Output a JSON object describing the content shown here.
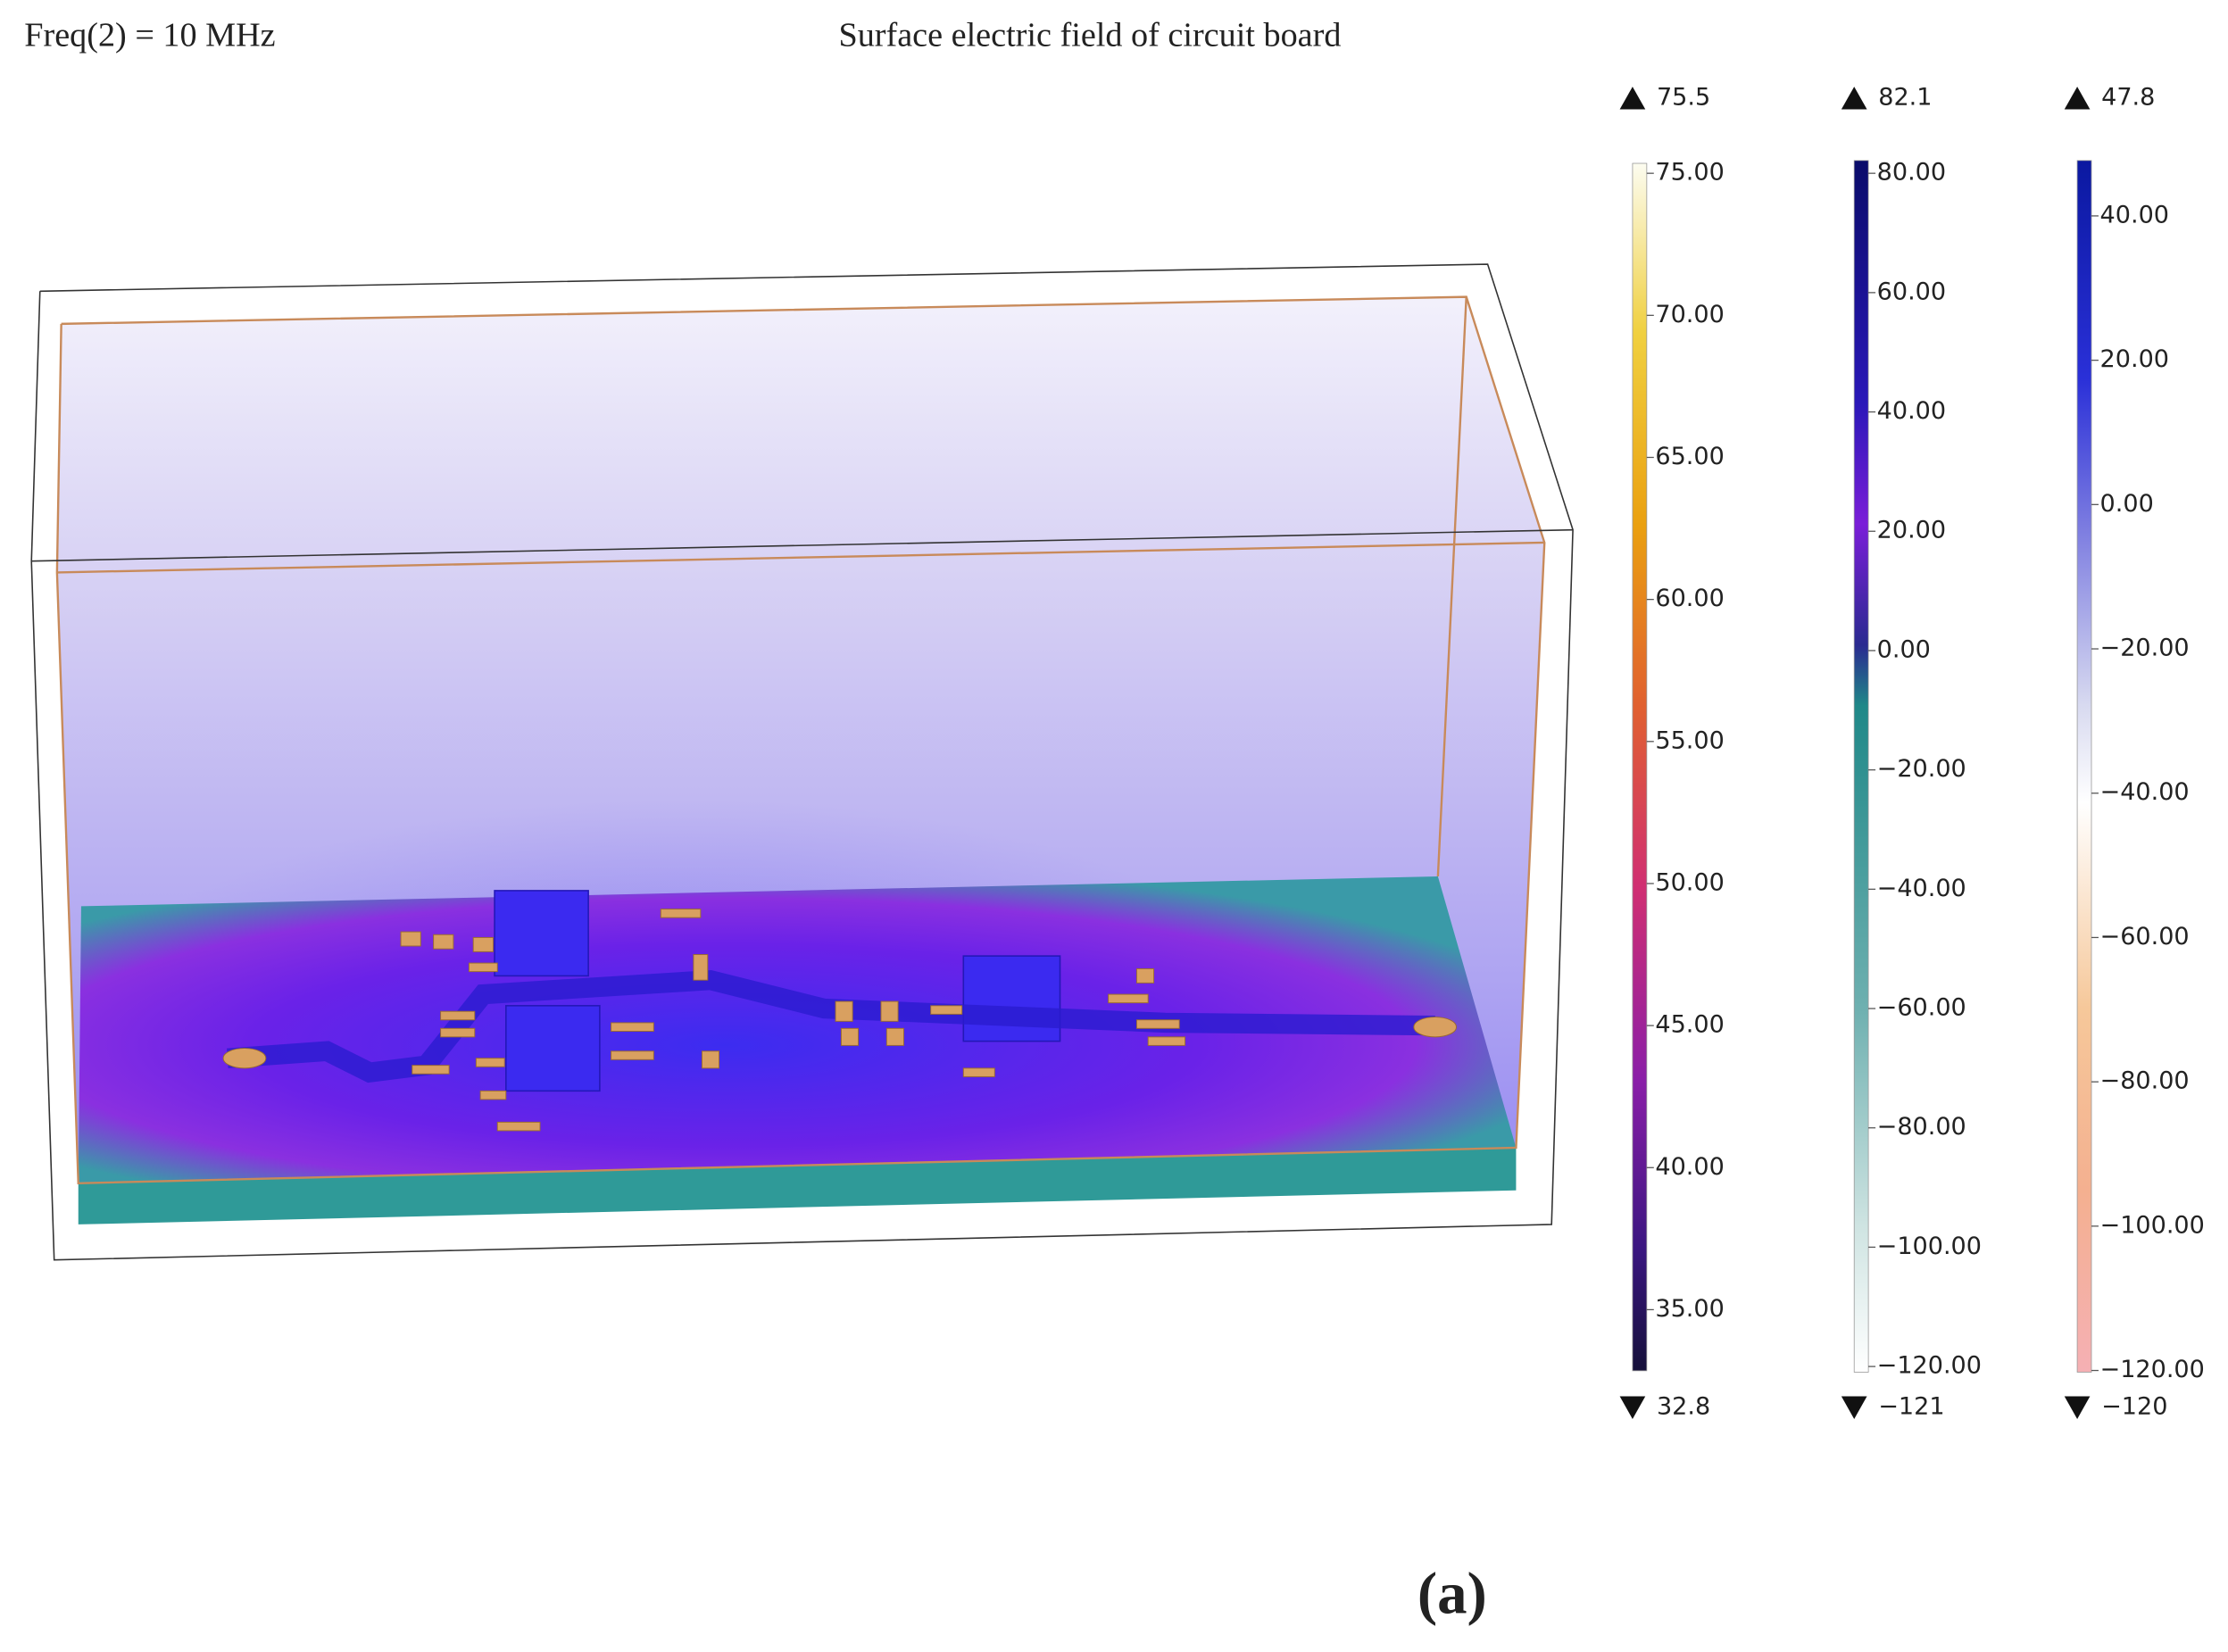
{
  "header": {
    "left": "Freq(2) = 10 MHz",
    "title": "Surface electric field of circuit board"
  },
  "colorbars": [
    {
      "max": "75.5",
      "min": "32.8",
      "ticks": [
        "75.00",
        "70.00",
        "65.00",
        "60.00",
        "55.00",
        "50.00",
        "45.00",
        "40.00",
        "35.00"
      ]
    },
    {
      "max": "82.1",
      "min": "−121",
      "ticks": [
        "80.00",
        "60.00",
        "40.00",
        "20.00",
        "0.00",
        "−20.00",
        "−40.00",
        "−60.00",
        "−80.00",
        "−100.00",
        "−120.00"
      ]
    },
    {
      "max": "47.8",
      "min": "−120",
      "ticks": [
        "40.00",
        "20.00",
        "0.00",
        "−20.00",
        "−40.00",
        "−60.00",
        "−80.00",
        "−100.00",
        "−120.00"
      ]
    }
  ],
  "caption": "(a)"
}
